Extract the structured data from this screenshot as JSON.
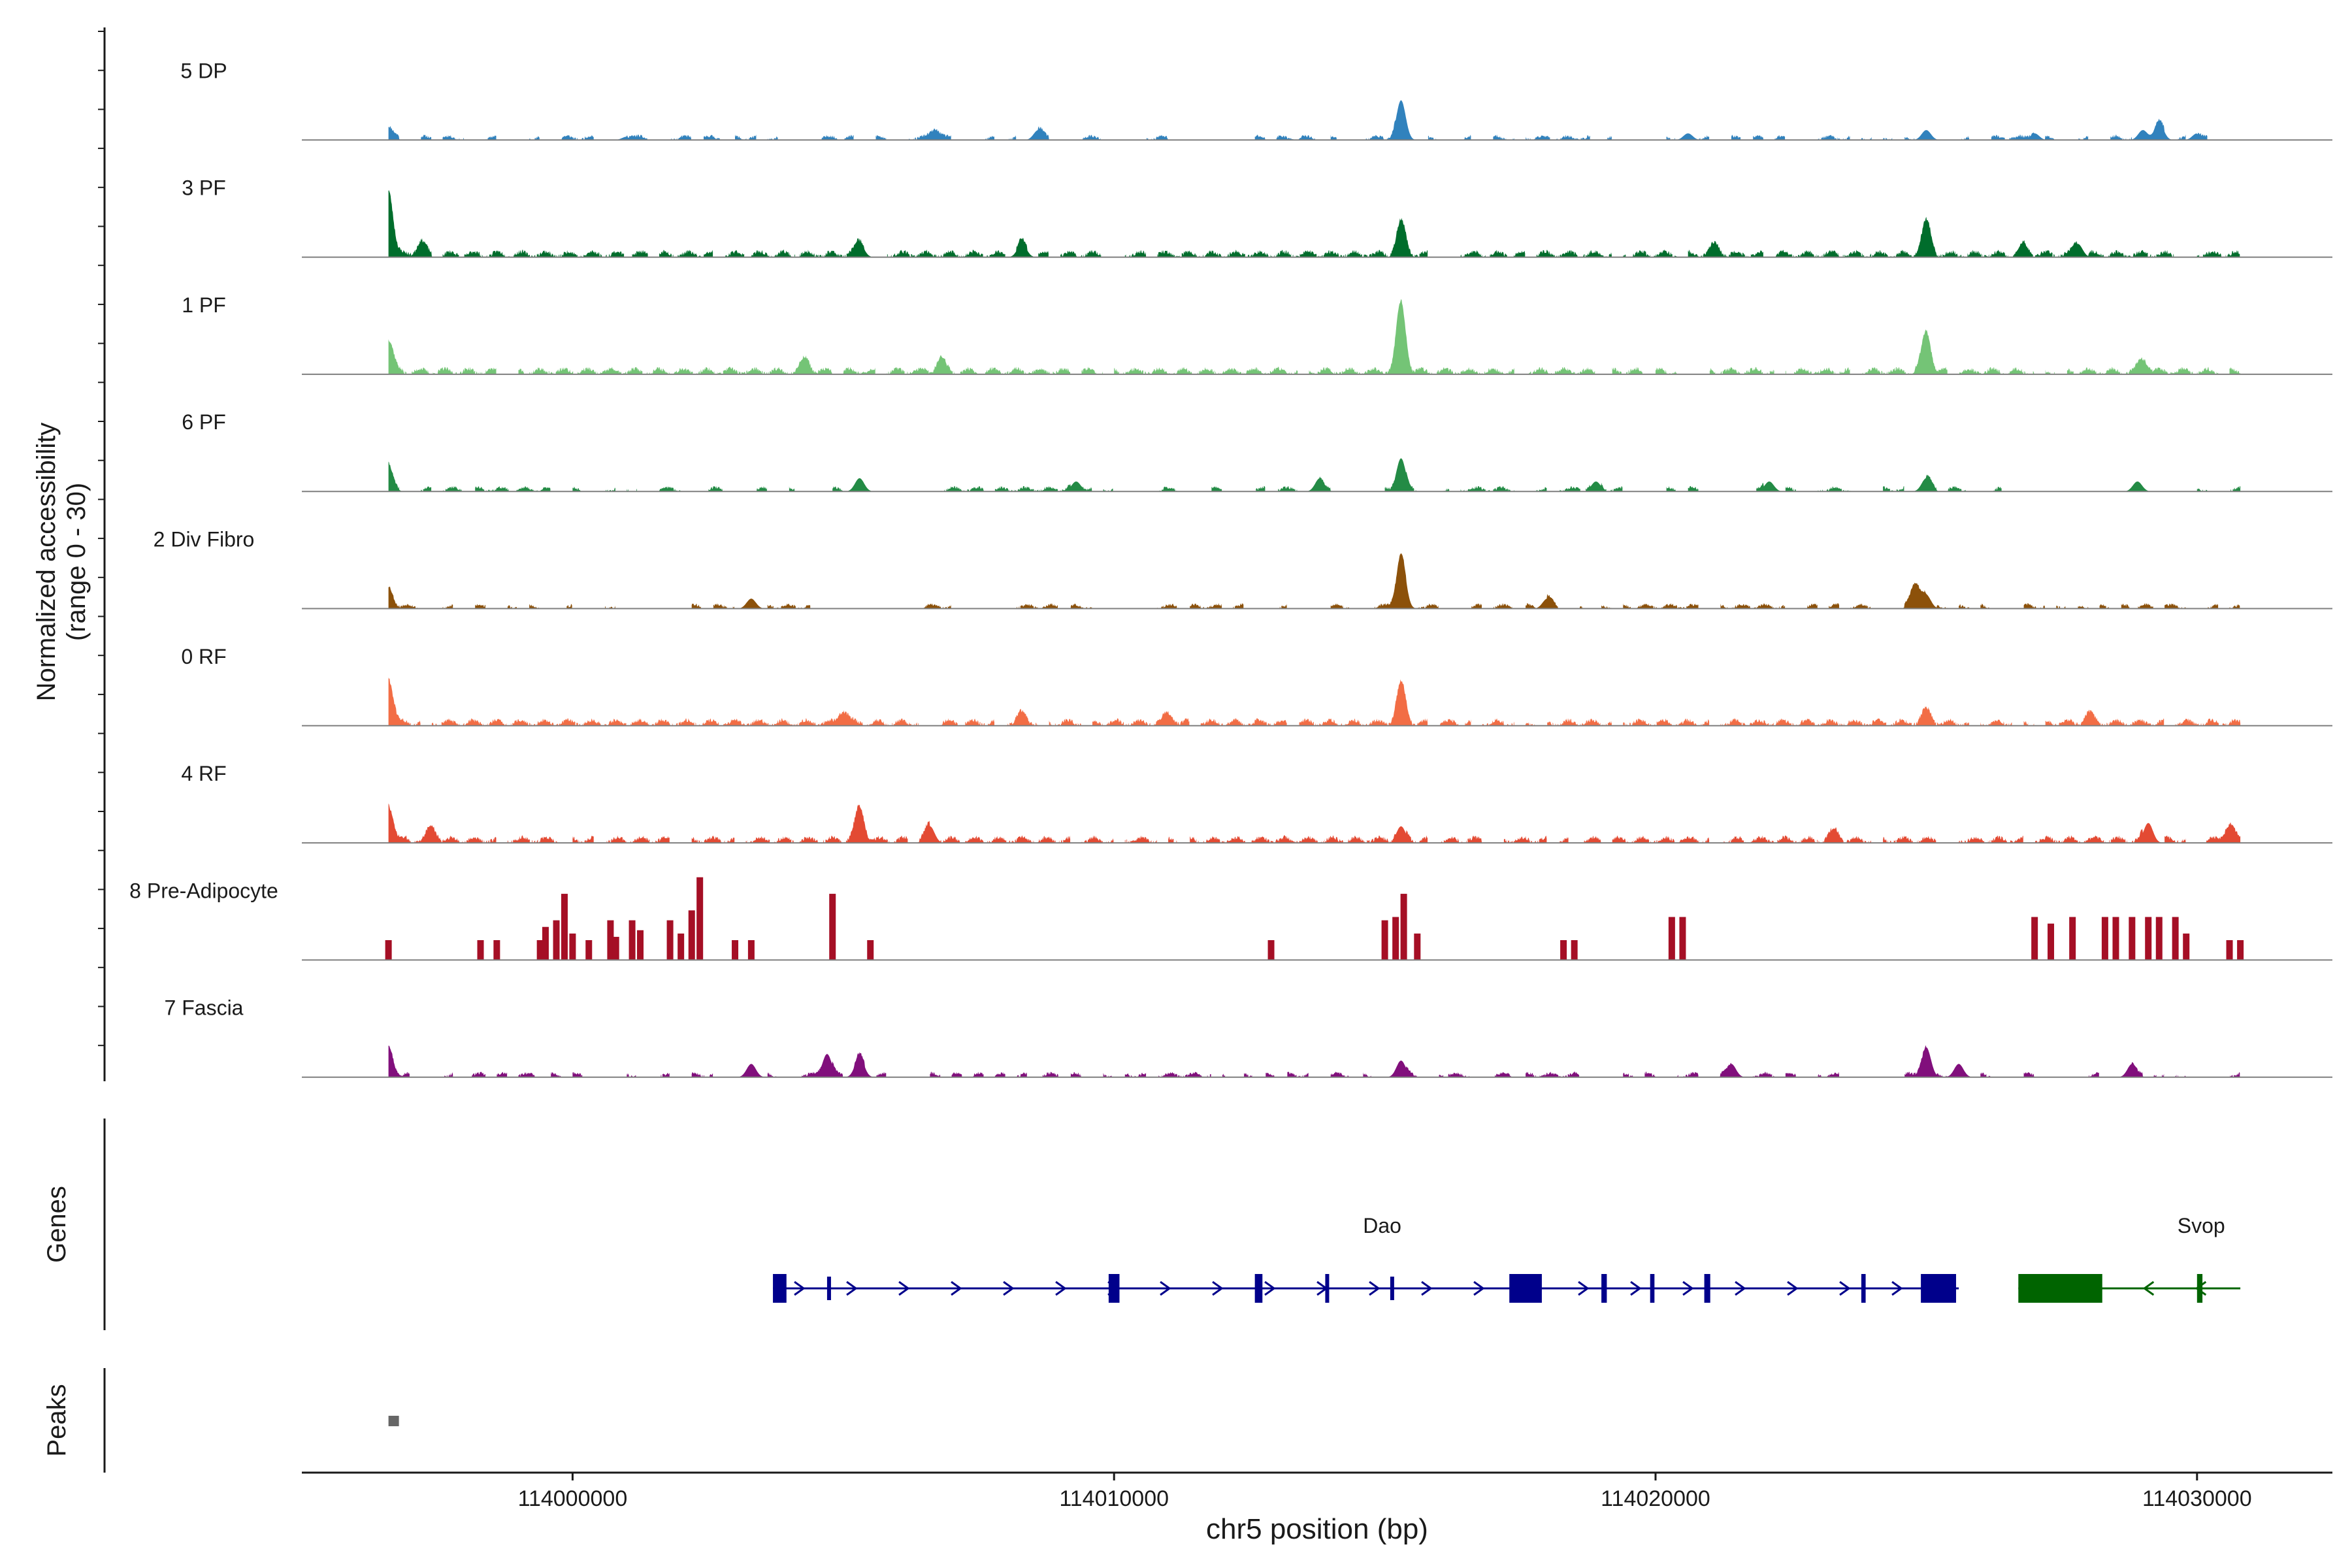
{
  "chart_data": {
    "type": "genome-coverage",
    "region": {
      "chromosome": "chr5",
      "start": 113995000,
      "end": 114032500
    },
    "xlabel": "chr5 position (bp)",
    "x_ticks": [
      {
        "value": 114000000,
        "label": "114000000"
      },
      {
        "value": 114010000,
        "label": "114010000"
      },
      {
        "value": 114020000,
        "label": "114020000"
      },
      {
        "value": 114030000,
        "label": "114030000"
      }
    ],
    "coverage_panel": {
      "ylabel_line1": "Normalized accessibility",
      "ylabel_line2": "(range 0 - 30)",
      "range": [
        0,
        30
      ],
      "tracks": [
        {
          "name": "5 DP",
          "color": "#3182bd",
          "style": "sparse",
          "seed": 11,
          "peaks": [
            [
              113996600,
              4
            ],
            [
              114001000,
              1
            ],
            [
              114006700,
              3
            ],
            [
              114008600,
              3
            ],
            [
              114015300,
              12
            ],
            [
              114020600,
              2
            ],
            [
              114025000,
              3
            ],
            [
              114027000,
              2
            ],
            [
              114029000,
              3
            ],
            [
              114030000,
              2
            ],
            [
              114029300,
              5
            ]
          ]
        },
        {
          "name": "3 PF",
          "color": "#006d2c",
          "style": "dense",
          "seed": 23,
          "peaks": [
            [
              113996600,
              20
            ],
            [
              113997200,
              4
            ],
            [
              114005300,
              4
            ],
            [
              114008300,
              4
            ],
            [
              114015300,
              10
            ],
            [
              114021100,
              3
            ],
            [
              114025000,
              10
            ],
            [
              114026800,
              3
            ],
            [
              114027800,
              4
            ]
          ]
        },
        {
          "name": "1 PF",
          "color": "#74c476",
          "style": "dense",
          "seed": 37,
          "peaks": [
            [
              113996600,
              10
            ],
            [
              114004300,
              4
            ],
            [
              114006800,
              4
            ],
            [
              114015300,
              21
            ],
            [
              114025000,
              12
            ],
            [
              114029000,
              4
            ]
          ]
        },
        {
          "name": "6 PF",
          "color": "#238b45",
          "style": "sparse",
          "seed": 41,
          "peaks": [
            [
              113996600,
              8
            ],
            [
              114005300,
              4
            ],
            [
              114009300,
              3
            ],
            [
              114013800,
              4
            ],
            [
              114015300,
              10
            ],
            [
              114018900,
              3
            ],
            [
              114022100,
              3
            ],
            [
              114025000,
              4
            ],
            [
              114028900,
              3
            ]
          ]
        },
        {
          "name": "2 Div Fibro",
          "color": "#8c510a",
          "style": "sparse",
          "seed": 53,
          "peaks": [
            [
              113996600,
              6
            ],
            [
              114003300,
              3
            ],
            [
              114015300,
              16
            ],
            [
              114018000,
              3
            ],
            [
              114024800,
              7
            ],
            [
              114025000,
              4
            ]
          ]
        },
        {
          "name": "0 RF",
          "color": "#f26d45",
          "style": "dense",
          "seed": 61,
          "peaks": [
            [
              113996600,
              14
            ],
            [
              114005000,
              4
            ],
            [
              114008300,
              3
            ],
            [
              114011000,
              3
            ],
            [
              114015300,
              12
            ],
            [
              114025000,
              4
            ],
            [
              114028000,
              3
            ]
          ]
        },
        {
          "name": "4 RF",
          "color": "#e34a33",
          "style": "dense",
          "seed": 73,
          "peaks": [
            [
              113996600,
              11
            ],
            [
              113997400,
              4
            ],
            [
              114005300,
              10
            ],
            [
              114006600,
              5
            ],
            [
              114015300,
              5
            ],
            [
              114023300,
              3
            ],
            [
              114029100,
              6
            ],
            [
              114030600,
              5
            ]
          ]
        },
        {
          "name": "8 Pre-Adipocyte",
          "color": "#a50f25",
          "style": "spiky",
          "seed": 83,
          "bars": [
            [
              113996600,
              6
            ],
            [
              113998300,
              6
            ],
            [
              113998600,
              6
            ],
            [
              113999400,
              6
            ],
            [
              113999500,
              10
            ],
            [
              113999700,
              12
            ],
            [
              113999850,
              20
            ],
            [
              114000000,
              8
            ],
            [
              114000300,
              6
            ],
            [
              114000700,
              12
            ],
            [
              114000800,
              7
            ],
            [
              114001100,
              12
            ],
            [
              114001250,
              9
            ],
            [
              114001800,
              12
            ],
            [
              114002000,
              8
            ],
            [
              114002200,
              15
            ],
            [
              114002350,
              25
            ],
            [
              114003000,
              6
            ],
            [
              114003300,
              6
            ],
            [
              114004800,
              20
            ],
            [
              114005500,
              6
            ],
            [
              114012900,
              6
            ],
            [
              114015000,
              12
            ],
            [
              114015200,
              13
            ],
            [
              114015350,
              20
            ],
            [
              114015600,
              8
            ],
            [
              114018300,
              6
            ],
            [
              114018500,
              6
            ],
            [
              114020300,
              13
            ],
            [
              114020500,
              13
            ],
            [
              114027000,
              13
            ],
            [
              114027300,
              11
            ],
            [
              114027700,
              13
            ],
            [
              114028300,
              13
            ],
            [
              114028500,
              13
            ],
            [
              114028800,
              13
            ],
            [
              114029100,
              13
            ],
            [
              114029300,
              13
            ],
            [
              114029600,
              13
            ],
            [
              114029800,
              8
            ],
            [
              114030600,
              6
            ],
            [
              114030800,
              6
            ]
          ]
        },
        {
          "name": "7 Fascia",
          "color": "#810f7c",
          "style": "sparse",
          "seed": 97,
          "peaks": [
            [
              113996600,
              9
            ],
            [
              114003300,
              4
            ],
            [
              114004700,
              7
            ],
            [
              114005300,
              6
            ],
            [
              114015300,
              5
            ],
            [
              114021400,
              4
            ],
            [
              114025000,
              9
            ],
            [
              114025600,
              4
            ],
            [
              114028800,
              4
            ]
          ]
        }
      ]
    },
    "genes_panel": {
      "label": "Genes",
      "genes": [
        {
          "name": "Dao",
          "strand": "+",
          "color": "#00008b",
          "start": 114003700,
          "end": 114025600,
          "exons": [
            [
              114003700,
              114003950,
              "tall"
            ],
            [
              114004700,
              114004740,
              "thin"
            ],
            [
              114009900,
              114010100,
              "tall"
            ],
            [
              114012600,
              114012740,
              "tall"
            ],
            [
              114013900,
              114013960,
              "tall"
            ],
            [
              114015100,
              114015140,
              "thin"
            ],
            [
              114017300,
              114017900,
              "tall"
            ],
            [
              114019000,
              114019100,
              "tall"
            ],
            [
              114019900,
              114019980,
              "tall"
            ],
            [
              114020900,
              114021010,
              "tall"
            ],
            [
              114023800,
              114023880,
              "tall"
            ],
            [
              114024900,
              114025550,
              "tall"
            ]
          ]
        },
        {
          "name": "Svop",
          "strand": "-",
          "color": "#006400",
          "start": 114026700,
          "end": 114030800,
          "exons": [
            [
              114026700,
              114028250,
              "tall"
            ],
            [
              114030000,
              114030100,
              "tall"
            ]
          ]
        }
      ]
    },
    "peaks_panel": {
      "label": "Peaks",
      "peaks": [
        [
          113996600,
          113996700
        ]
      ]
    }
  }
}
